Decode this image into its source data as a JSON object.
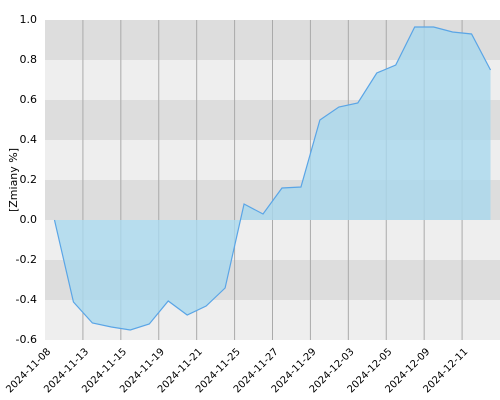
{
  "chart_data": {
    "type": "area",
    "y_label": "[Zmiany %]",
    "categories": [
      "2024-11-08",
      null,
      "2024-11-13",
      null,
      "2024-11-15",
      null,
      "2024-11-19",
      null,
      "2024-11-21",
      null,
      "2024-11-25",
      null,
      "2024-11-27",
      null,
      "2024-11-29",
      null,
      "2024-12-03",
      null,
      "2024-12-05",
      null,
      "2024-12-09",
      null,
      "2024-12-11",
      null
    ],
    "series": [
      {
        "color": "#5aa5e6",
        "fill": "#a9d8ee",
        "values": [
          0.0,
          -0.41,
          -0.515,
          -0.535,
          -0.55,
          -0.52,
          -0.405,
          -0.475,
          -0.43,
          -0.34,
          0.08,
          0.03,
          0.16,
          0.165,
          0.5,
          0.565,
          0.585,
          0.735,
          0.775,
          0.965,
          0.965,
          0.94,
          0.93,
          0.75
        ]
      }
    ],
    "ylim": [
      -0.6,
      1.0
    ],
    "yticks": [
      {
        "value": -0.6,
        "label": "-0.6"
      },
      {
        "value": -0.4,
        "label": "-0.4"
      },
      {
        "value": -0.2,
        "label": "-0.2"
      },
      {
        "value": 0,
        "label": "0.0"
      },
      {
        "value": 0.2,
        "label": "0.2"
      },
      {
        "value": 0.4,
        "label": "0.4"
      },
      {
        "value": 0.6,
        "label": "0.6"
      },
      {
        "value": 0.8,
        "label": "0.8"
      },
      {
        "value": 1.0,
        "label": "1.0"
      }
    ],
    "grid": true,
    "band_colors": [
      "#eeeeee",
      "#dddddd"
    ]
  }
}
